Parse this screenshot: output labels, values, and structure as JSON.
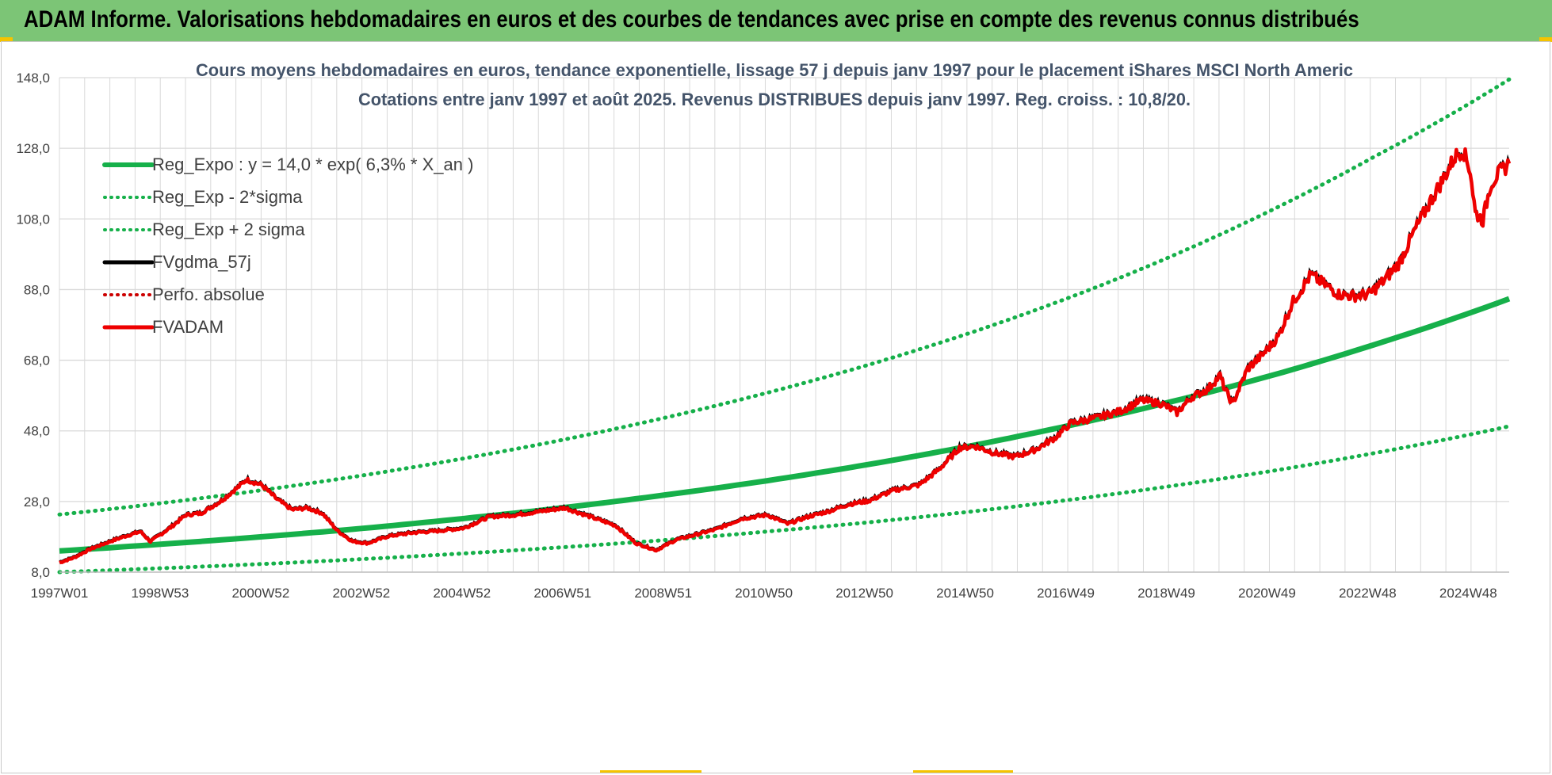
{
  "header": {
    "title": "ADAM Informe. Valorisations hebdomadaires en euros et des courbes de tendances avec prise en compte des revenus connus distribués"
  },
  "colors": {
    "header_bg": "#7cc576",
    "trend_green": "#16b04a",
    "fv_black": "#000000",
    "fvadam_red": "#ee0000",
    "perfo_red": "#cc0000",
    "grid": "#d9d9d9",
    "accent_yellow": "#f5c400"
  },
  "chart_data": {
    "type": "line",
    "title": "Cours moyens hebdomadaires en euros, tendance exponentielle, lissage 57 j depuis janv 1997 pour le placement iShares MSCI North Americ",
    "subtitle": "Cotations entre janv 1997 et août 2025.  Revenus DISTRIBUES depuis janv 1997. Reg. croiss. : 10,8/20.",
    "x_tick_labels": [
      "1997W01",
      "1998W53",
      "2000W52",
      "2002W52",
      "2004W52",
      "2006W51",
      "2008W51",
      "2010W50",
      "2012W50",
      "2014W50",
      "2016W49",
      "2018W49",
      "2020W49",
      "2022W48",
      "2024W48"
    ],
    "x_range_years": [
      1997.0,
      2025.67
    ],
    "y_tick_labels": [
      "8,0",
      "28,0",
      "48,0",
      "68,0",
      "88,0",
      "108,0",
      "128,0",
      "148,0"
    ],
    "ylim": [
      8,
      148
    ],
    "grid": "on",
    "legend_position": "top-left",
    "legend": [
      {
        "label": "Reg_Expo : y = 14,0 * exp( 6,3% *  X_an )",
        "style": "solid",
        "color": "#16b04a"
      },
      {
        "label": "Reg_Exp - 2*sigma",
        "style": "dotted",
        "color": "#16b04a"
      },
      {
        "label": "Reg_Exp + 2 sigma",
        "style": "dotted",
        "color": "#16b04a"
      },
      {
        "label": "FVgdma_57j",
        "style": "solid",
        "color": "#000000"
      },
      {
        "label": "Perfo. absolue",
        "style": "dotted",
        "color": "#cc0000"
      },
      {
        "label": "FVADAM",
        "style": "solid",
        "color": "#ee0000"
      }
    ],
    "series": [
      {
        "name": "Reg_Expo : y = 14,0 * exp( 6,3% *  X_an )",
        "x": [
          1997,
          1999,
          2001,
          2003,
          2005,
          2007,
          2009,
          2011,
          2013,
          2015,
          2017,
          2019,
          2021,
          2023,
          2025.67
        ],
        "y": [
          14.0,
          15.9,
          18.0,
          20.4,
          23.2,
          26.3,
          29.9,
          33.9,
          38.5,
          43.7,
          49.6,
          56.3,
          63.8,
          72.4,
          85.4
        ]
      },
      {
        "name": "Reg_Exp - 2*sigma",
        "x": [
          1997,
          1999,
          2001,
          2003,
          2005,
          2007,
          2009,
          2011,
          2013,
          2015,
          2017,
          2019,
          2021,
          2023,
          2025.67
        ],
        "y": [
          8.0,
          9.1,
          10.3,
          11.7,
          13.3,
          15.1,
          17.1,
          19.5,
          22.1,
          25.1,
          28.5,
          32.4,
          36.7,
          41.7,
          49.3
        ]
      },
      {
        "name": "Reg_Exp + 2 sigma",
        "x": [
          1997,
          1999,
          2001,
          2003,
          2005,
          2007,
          2009,
          2011,
          2013,
          2015,
          2017,
          2019,
          2021,
          2023,
          2025.67
        ],
        "y": [
          24.3,
          27.5,
          31.2,
          35.4,
          40.2,
          45.6,
          51.8,
          58.8,
          66.7,
          75.7,
          85.9,
          97.5,
          110.7,
          125.6,
          147.5
        ]
      },
      {
        "name": "FVADAM",
        "x": [
          1997.0,
          1997.3,
          1997.6,
          1998.0,
          1998.3,
          1998.6,
          1998.8,
          1999.2,
          1999.5,
          1999.8,
          2000.2,
          2000.5,
          2000.7,
          2001.0,
          2001.3,
          2001.6,
          2001.9,
          2002.2,
          2002.5,
          2002.8,
          2003.1,
          2003.5,
          2004.0,
          2004.5,
          2005.0,
          2005.5,
          2006.0,
          2006.5,
          2007.0,
          2007.5,
          2008.0,
          2008.4,
          2008.8,
          2009.2,
          2009.6,
          2010.0,
          2010.5,
          2011.0,
          2011.4,
          2011.8,
          2012.2,
          2012.6,
          2013.0,
          2013.5,
          2014.0,
          2014.4,
          2014.8,
          2015.1,
          2015.5,
          2015.9,
          2016.3,
          2016.7,
          2017.0,
          2017.5,
          2018.0,
          2018.4,
          2018.8,
          2019.1,
          2019.4,
          2019.7,
          2019.95,
          2020.05,
          2020.2,
          2020.5,
          2020.8,
          2021.1,
          2021.4,
          2021.75,
          2022.0,
          2022.3,
          2022.6,
          2022.9,
          2023.2,
          2023.5,
          2023.8,
          2024.1,
          2024.3,
          2024.45,
          2024.6,
          2024.75,
          2024.9,
          2025.0,
          2025.15,
          2025.3,
          2025.45,
          2025.67
        ],
        "y": [
          11.0,
          12.5,
          14.8,
          17.0,
          18.5,
          19.8,
          17.0,
          21.0,
          24.5,
          25.0,
          28.5,
          32.0,
          34.5,
          33.0,
          29.0,
          26.0,
          26.5,
          25.0,
          20.0,
          17.0,
          16.5,
          18.5,
          19.5,
          20.0,
          20.8,
          24.0,
          24.5,
          25.5,
          26.5,
          24.0,
          21.5,
          16.5,
          14.5,
          17.5,
          19.0,
          20.5,
          23.5,
          24.5,
          22.0,
          24.0,
          25.5,
          27.5,
          28.5,
          31.5,
          33.0,
          37.5,
          43.5,
          44.0,
          42.0,
          41.0,
          43.0,
          46.5,
          50.5,
          52.0,
          54.0,
          57.0,
          56.0,
          53.5,
          58.0,
          60.0,
          64.0,
          60.0,
          56.0,
          66.0,
          70.0,
          75.0,
          85.0,
          92.5,
          90.0,
          87.0,
          86.5,
          87.0,
          91.0,
          96.0,
          105.0,
          113.0,
          118.0,
          122.0,
          126.0,
          128.0,
          122.0,
          110.0,
          108.0,
          118.0,
          121.0,
          124.0
        ]
      },
      {
        "name": "FVgdma_57j",
        "x": [
          1997.0,
          1998.0,
          1999.0,
          2000.0,
          2000.7,
          2001.5,
          2002.5,
          2003.5,
          2005.0,
          2006.5,
          2008.0,
          2009.0,
          2010.5,
          2012.0,
          2013.5,
          2014.5,
          2015.0,
          2016.0,
          2017.0,
          2018.0,
          2019.0,
          2020.0,
          2020.3,
          2021.0,
          2022.0,
          2022.5,
          2023.0,
          2023.8,
          2024.5,
          2024.9,
          2025.2,
          2025.67
        ],
        "y": [
          11.5,
          16.8,
          20.5,
          29.0,
          33.0,
          28.0,
          21.0,
          18.0,
          20.5,
          25.0,
          23.0,
          15.5,
          21.0,
          25.5,
          30.5,
          38.0,
          43.0,
          42.0,
          50.0,
          53.5,
          56.0,
          61.0,
          60.0,
          73.0,
          91.0,
          87.5,
          88.0,
          102.0,
          120.0,
          124.0,
          117.0,
          121.0
        ]
      }
    ]
  },
  "x_labels_positions_note": ""
}
